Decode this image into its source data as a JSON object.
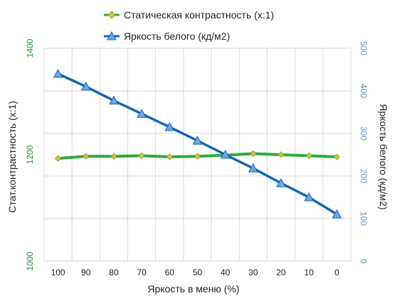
{
  "chart_data": {
    "type": "line",
    "title": "",
    "legend_position": "top",
    "grid": {
      "vertical": true,
      "horizontal": true
    },
    "xlabel": "Яркость в меню (%)",
    "categories": [
      "100",
      "90",
      "80",
      "70",
      "60",
      "50",
      "40",
      "30",
      "20",
      "10",
      "0"
    ],
    "y_left": {
      "label": "Стат.контрастность  (x:1)",
      "ticks": [
        "1000",
        "1200",
        "1400"
      ],
      "range": [
        1000,
        1400
      ],
      "color": "#1e9b3a"
    },
    "y_right": {
      "label": "Яркость белого (кд/м2)",
      "ticks": [
        "0",
        "100",
        "200",
        "300",
        "400",
        "500"
      ],
      "range": [
        0,
        500
      ],
      "color": "#5b8fd1"
    },
    "series": [
      {
        "name": "Статическая контрастность  (x:1)",
        "axis": "left",
        "marker": "diamond",
        "line_color": "#2daa3f",
        "marker_color": "#c8c840",
        "values": [
          1193,
          1197,
          1197,
          1198,
          1196,
          1197,
          1199,
          1202,
          1200,
          1198,
          1196
        ]
      },
      {
        "name": "Яркость белого (кд/м2)",
        "axis": "right",
        "marker": "triangle",
        "line_color": "#1565b8",
        "marker_color": "#6fa8dc",
        "values": [
          440,
          410,
          377,
          346,
          315,
          283,
          250,
          218,
          183,
          150,
          110
        ]
      }
    ]
  }
}
